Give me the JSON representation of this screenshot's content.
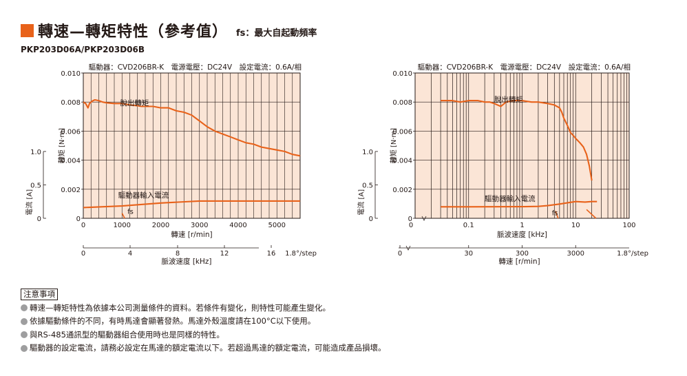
{
  "header": {
    "title": "轉速—轉矩特性（參考值）",
    "subtitle": "fs：最大自起動頻率"
  },
  "model": "PKP203D06A/PKP203D06B",
  "colors": {
    "accent": "#e8621a",
    "fill": "#fbe5d6",
    "grid": "#231815",
    "bullet": "#9e9e9f"
  },
  "chart_data": [
    {
      "type": "line",
      "title": "驅動器：CVD206BR-K　電源電壓：DC24V　設定電流：0.6A/相",
      "xlabel": "轉速 [r/min]",
      "ylabel": "轉矩 [N·m]",
      "ylabel2": "電流 [A]",
      "xlabel2": "脈波速度 [kHz]",
      "xlim": [
        0,
        5600
      ],
      "ylim": [
        0,
        0.01
      ],
      "xscale": "linear",
      "xticks": [
        "0",
        "1000",
        "2000",
        "3000",
        "4000",
        "5000"
      ],
      "yticks": [
        "0",
        "0.002",
        "0.004",
        "0.006",
        "0.008",
        "0.010"
      ],
      "y2ticks": [
        "0",
        "0.5",
        "1.0"
      ],
      "x2ticks": [
        "0",
        "4",
        "8",
        "12",
        "16",
        "1.8°/step"
      ],
      "series": [
        {
          "name": "脫出轉矩",
          "x": [
            0,
            60,
            120,
            160,
            200,
            250,
            300,
            400,
            500,
            600,
            800,
            1000,
            1200,
            1400,
            1500,
            1800,
            2000,
            2200,
            2400,
            2600,
            2800,
            2900,
            3000,
            3200,
            3400,
            3600,
            3800,
            4000,
            4200,
            4400,
            4600,
            4800,
            5000,
            5200,
            5400,
            5600
          ],
          "y": [
            0.008,
            0.0079,
            0.0076,
            0.0079,
            0.008,
            0.0081,
            0.00815,
            0.0081,
            0.008,
            0.00795,
            0.0079,
            0.0079,
            0.0078,
            0.00775,
            0.0077,
            0.0077,
            0.0076,
            0.0076,
            0.0074,
            0.0073,
            0.0071,
            0.0069,
            0.0067,
            0.0063,
            0.006,
            0.0058,
            0.0056,
            0.0054,
            0.0052,
            0.0051,
            0.0049,
            0.0048,
            0.0047,
            0.0046,
            0.0044,
            0.0043
          ]
        },
        {
          "name": "驅動器輸入電流",
          "x": [
            0,
            1000,
            2000,
            3000,
            4000,
            5000,
            5600
          ],
          "y": [
            0.00074,
            0.00085,
            0.00105,
            0.00119,
            0.00119,
            0.00119,
            0.00119
          ]
        },
        {
          "name": "fs",
          "x": [
            1000,
            1070
          ],
          "y": [
            0.00035,
            0.0
          ]
        }
      ]
    },
    {
      "type": "line",
      "title": "驅動器：CVD206BR-K　電源電壓：DC24V　設定電流：0.6A/相",
      "xlabel": "脈波速度 [kHz]",
      "ylabel": "轉矩 [N·m]",
      "ylabel2": "電流 [A]",
      "xlabel2": "轉速 [r/min]",
      "xlim": [
        0.01,
        100
      ],
      "ylim": [
        0,
        0.01
      ],
      "xscale": "log",
      "xticks": [
        "0",
        "0.1",
        "1",
        "10",
        "100"
      ],
      "yticks": [
        "0",
        "0.002",
        "0.004",
        "0.006",
        "0.008",
        "0.010"
      ],
      "y2ticks": [
        "0",
        "0.5",
        "1.0"
      ],
      "x2ticks": [
        "0",
        "30",
        "300",
        "3000",
        "1.8°/step"
      ],
      "series": [
        {
          "name": "脫出轉矩",
          "x": [
            0.03,
            0.05,
            0.07,
            0.1,
            0.15,
            0.2,
            0.25,
            0.3,
            0.4,
            0.5,
            0.7,
            1.0,
            1.5,
            2,
            3,
            4,
            5,
            5.5,
            6,
            7,
            8,
            9,
            10,
            12,
            14,
            16,
            18,
            20
          ],
          "y": [
            0.0081,
            0.0081,
            0.008,
            0.0081,
            0.0081,
            0.008,
            0.008,
            0.0079,
            0.0077,
            0.008,
            0.0081,
            0.0081,
            0.008,
            0.008,
            0.0079,
            0.0078,
            0.0076,
            0.0073,
            0.0069,
            0.0064,
            0.0059,
            0.0057,
            0.0055,
            0.0052,
            0.0049,
            0.0044,
            0.0036,
            0.0026
          ]
        },
        {
          "name": "驅動器輸入電流",
          "x": [
            0.03,
            0.1,
            1,
            2,
            3,
            5,
            8,
            10,
            15,
            20,
            25
          ],
          "y": [
            0.00079,
            0.00079,
            0.0008,
            0.00082,
            0.00087,
            0.00098,
            0.0011,
            0.00115,
            0.00112,
            0.00115,
            0.00115
          ]
        },
        {
          "name": "fs-line",
          "x": [
            16,
            24
          ],
          "y": [
            0.0006,
            0.0
          ]
        },
        {
          "name": "fs",
          "x": [
            4.2,
            4.7
          ],
          "y": [
            0.0005,
            0.0
          ]
        }
      ]
    }
  ],
  "chart_labels": {
    "pullout": "脫出轉矩",
    "current": "驅動器輸入電流",
    "fs": "fs"
  },
  "notes": {
    "title": "注意事項",
    "items": [
      "轉速—轉矩特性為依據本公司測量條件的資料。若條件有變化，則特性可能產生變化。",
      "依據驅動條件的不同，有時馬達會顯著發熱。馬達外殼溫度請在100°C以下使用。",
      "與RS-485通訊型的驅動器組合使用時也是同樣的特性。",
      "驅動器的設定電流，請務必設定在馬達的額定電流以下。若超過馬達的額定電流，可能造成產品損壞。"
    ]
  }
}
